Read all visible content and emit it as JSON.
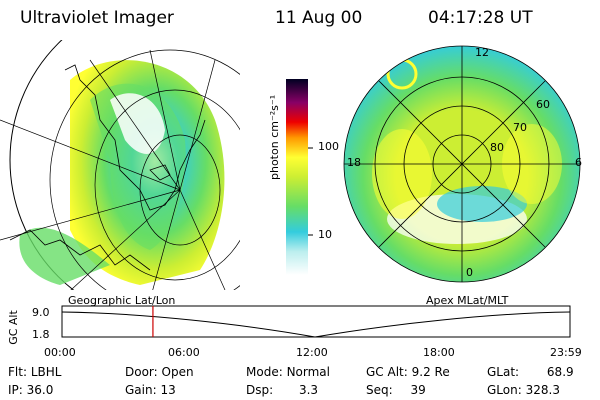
{
  "header": {
    "instrument": "Ultraviolet Imager",
    "date": "11 Aug 00",
    "time": "04:17:28 UT"
  },
  "left_panel": {
    "label": "Geographic Lat/Lon"
  },
  "right_panel": {
    "label": "Apex MLat/MLT",
    "mlt_labels": {
      "top": "12",
      "bottom": "0",
      "left": "18",
      "right": "6"
    },
    "lat_labels": [
      "60",
      "70",
      "80"
    ]
  },
  "colorbar": {
    "unit_label": "photon cm⁻²s⁻¹",
    "ticks": [
      "100",
      "10"
    ]
  },
  "timeline": {
    "ylabel": "GC Alt",
    "y_ticks": [
      "9.0",
      "1.8"
    ],
    "x_ticks": [
      "00:00",
      "06:00",
      "12:00",
      "18:00",
      "23:59"
    ],
    "current_time_fraction": 0.179
  },
  "status": {
    "flt_label": "Flt:",
    "flt_value": "LBHL",
    "ip_label": "IP:",
    "ip_value": "36.0",
    "door_label": "Door:",
    "door_value": "Open",
    "gain_label": "Gain:",
    "gain_value": "13",
    "mode_label": "Mode:",
    "mode_value": "Normal",
    "dsp_label": "Dsp:",
    "dsp_value": "3.3",
    "gcalt_label": "GC Alt:",
    "gcalt_value": "9.2 Re",
    "seq_label": "Seq:",
    "seq_value": "39",
    "glat_label": "GLat:",
    "glat_value": "68.9",
    "glon_label": "GLon:",
    "glon_value": "328.3"
  },
  "colors": {
    "low": "#ffffff",
    "cyan": "#33ccdd",
    "green": "#66dd66",
    "yellowgreen": "#ccee33",
    "yellow": "#ffff33",
    "orange": "#ff9900",
    "red": "#ee0000",
    "purple": "#880066",
    "black": "#000000",
    "marker": "#cc0000"
  }
}
